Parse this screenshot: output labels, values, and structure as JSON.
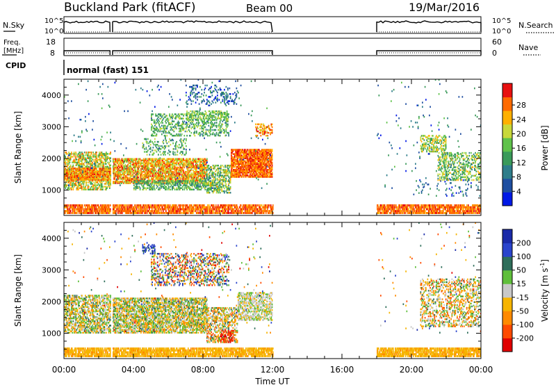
{
  "header": {
    "title": "Buckland Park (fitACF)",
    "beam": "Beam 00",
    "date": "19/Mar/2016"
  },
  "panels": {
    "nsky": {
      "label": "N.Sky",
      "right_label": "N.Search",
      "left_ticks": [
        "10^5",
        "10^0"
      ],
      "right_ticks": [
        "10^5",
        "10^0"
      ]
    },
    "freq": {
      "label_line1": "Freq.",
      "label_line2": "[MHz]",
      "right_label": "Nave",
      "left_ticks": [
        "18",
        "8"
      ],
      "right_ticks": [
        "60",
        "0"
      ]
    },
    "cpid": {
      "label": "CPID",
      "value": "normal (fast) 151"
    }
  },
  "colors": {
    "power_scale": [
      "#0019e6",
      "#1e4ea0",
      "#2e7d8a",
      "#3a9a5a",
      "#5fc24a",
      "#c8d83a",
      "#ffb000",
      "#ff6a00",
      "#e81010"
    ],
    "velocity_scale": [
      "#1a2aa8",
      "#2a44cc",
      "#2e6e5a",
      "#5fbf3a",
      "#c8c8c8",
      "#f6b400",
      "#ff8a00",
      "#ff4a00",
      "#e00000"
    ]
  },
  "chart_data": [
    {
      "type": "heatmap",
      "name": "power",
      "ylabel": "Slant Range [km]",
      "ylim": [
        200,
        4500
      ],
      "yticks": [
        "1000",
        "2000",
        "3000",
        "4000"
      ],
      "ytick_values": [
        1000,
        2000,
        3000,
        4000
      ],
      "xlim": [
        0,
        24
      ],
      "colorbar": {
        "label": "Power [dB]",
        "ticks": [
          "4",
          "8",
          "12",
          "16",
          "20",
          "24",
          "28"
        ]
      }
    },
    {
      "type": "heatmap",
      "name": "velocity",
      "ylabel": "Slant Range [km]",
      "ylim": [
        200,
        4500
      ],
      "yticks": [
        "1000",
        "2000",
        "3000",
        "4000"
      ],
      "ytick_values": [
        1000,
        2000,
        3000,
        4000
      ],
      "xlim": [
        0,
        24
      ],
      "xlabel": "Time UT",
      "xticks": [
        "00:00",
        "04:00",
        "08:00",
        "12:00",
        "16:00",
        "20:00",
        "00:00"
      ],
      "xtick_values": [
        0,
        4,
        8,
        12,
        16,
        20,
        24
      ],
      "colorbar": {
        "label_main": "Velocity [m s",
        "label_sup": "-1",
        "label_end": "]",
        "ticks": [
          "200",
          "100",
          "50",
          "15",
          "-15",
          "-50",
          "-100",
          "-200"
        ]
      }
    }
  ]
}
